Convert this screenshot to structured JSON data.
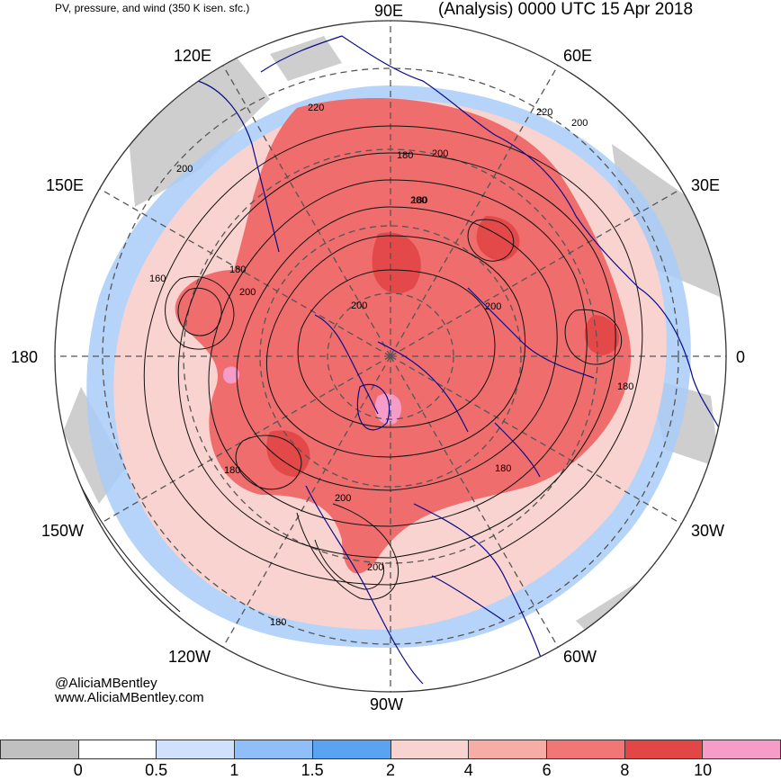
{
  "header": {
    "top_left": "PV, pressure, and wind (350 K isen. sfc.)",
    "title": "(Analysis) 0000 UTC 15 Apr 2018"
  },
  "longitudes": {
    "lon_90e": "90E",
    "lon_120e": "120E",
    "lon_60e": "60E",
    "lon_150e": "150E",
    "lon_30e": "30E",
    "lon_180": "180",
    "lon_0": "0",
    "lon_150w": "150W",
    "lon_30w": "30W",
    "lon_120w": "120W",
    "lon_60w": "60W",
    "lon_90w": "90W"
  },
  "contour_labels": [
    "220",
    "220",
    "200",
    "200",
    "180",
    "200",
    "200",
    "160",
    "180",
    "200",
    "200",
    "180",
    "180",
    "200",
    "180",
    "180",
    "200",
    "200",
    "180"
  ],
  "credit": {
    "handle": "@AliciaMBentley",
    "website": "www.AliciaMBentley.com"
  },
  "colorbar": {
    "colors": [
      "#c0c0c0",
      "#ffffff",
      "#d0e2fb",
      "#8fbef8",
      "#5aa3f2",
      "#f9d3cf",
      "#f7aca6",
      "#f27676",
      "#e34646",
      "#f59cc9"
    ],
    "labels": [
      "0",
      "0.5",
      "1",
      "1.5",
      "2",
      "4",
      "6",
      "8",
      "10"
    ]
  }
}
